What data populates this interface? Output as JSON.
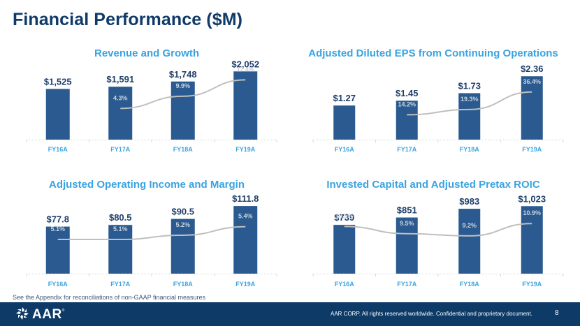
{
  "page": {
    "title": "Financial Performance ($M)",
    "footnote": "See the Appendix for reconciliations of non-GAAP financial measures",
    "footer": {
      "logo_text": "AAR",
      "logo_mark": "®",
      "copyright": "AAR CORP. All rights reserved worldwide. Confidential and proprietary document.",
      "page_number": "8"
    }
  },
  "colors": {
    "title": "#0f3a68",
    "chart_title": "#3aa3e0",
    "bar": "#2a5a8f",
    "bar_label": "#1f3f6b",
    "line": "#bfbfbf",
    "line_label": "#c9d3df",
    "axis_label": "#3aa3e0",
    "footer_bg": "#0d3a66"
  },
  "chart_data": [
    {
      "type": "bar",
      "title": "Revenue and Growth",
      "categories": [
        "FY16A",
        "FY17A",
        "FY18A",
        "FY19A"
      ],
      "series": [
        {
          "name": "Revenue",
          "kind": "bar",
          "values": [
            1525,
            1591,
            1748,
            2052
          ],
          "labels": [
            "$1,525",
            "$1,591",
            "$1,748",
            "$2,052"
          ]
        },
        {
          "name": "Growth",
          "kind": "line",
          "values": [
            null,
            4.3,
            9.9,
            17.4
          ],
          "labels": [
            "",
            "4.3%",
            "9.9%",
            "17.4%"
          ]
        }
      ],
      "xlabel": "",
      "ylabel": "",
      "bar_ylim": [
        0,
        2100
      ],
      "line_ylim": [
        -10,
        22
      ],
      "grid": false,
      "legend": "none"
    },
    {
      "type": "bar",
      "title": "Adjusted Diluted EPS from Continuing Operations",
      "categories": [
        "FY16A",
        "FY17A",
        "FY18A",
        "FY19A"
      ],
      "series": [
        {
          "name": "Adjusted Diluted EPS",
          "kind": "bar",
          "values": [
            1.27,
            1.45,
            1.73,
            2.36
          ],
          "labels": [
            "$1.27",
            "$1.45",
            "$1.73",
            "$2.36"
          ]
        },
        {
          "name": "Growth",
          "kind": "line",
          "values": [
            null,
            14.2,
            19.3,
            36.4
          ],
          "labels": [
            "",
            "14.2%",
            "19.3%",
            "36.4%"
          ]
        }
      ],
      "xlabel": "",
      "ylabel": "",
      "bar_ylim": [
        0,
        2.6
      ],
      "line_ylim": [
        -10,
        58
      ],
      "grid": false,
      "legend": "none"
    },
    {
      "type": "bar",
      "title": "Adjusted Operating Income and Margin",
      "categories": [
        "FY16A",
        "FY17A",
        "FY18A",
        "FY19A"
      ],
      "series": [
        {
          "name": "Adjusted Operating Income",
          "kind": "bar",
          "values": [
            77.8,
            80.5,
            90.5,
            111.8
          ],
          "labels": [
            "$77.8",
            "$80.5",
            "$90.5",
            "$111.8"
          ]
        },
        {
          "name": "Margin",
          "kind": "line",
          "values": [
            5.1,
            5.1,
            5.2,
            5.4
          ],
          "labels": [
            "5.1%",
            "5.1%",
            "5.2%",
            "5.4%"
          ]
        }
      ],
      "xlabel": "",
      "ylabel": "",
      "bar_ylim": [
        0,
        120
      ],
      "line_ylim": [
        4.3,
        6.0
      ],
      "grid": false,
      "legend": "none"
    },
    {
      "type": "bar",
      "title": "Invested Capital and Adjusted Pretax ROIC",
      "categories": [
        "FY16A",
        "FY17A",
        "FY18A",
        "FY19A"
      ],
      "series": [
        {
          "name": "Invested Capital",
          "kind": "bar",
          "values": [
            739,
            851,
            983,
            1023
          ],
          "labels": [
            "$739",
            "$851",
            "$983",
            "$1,023"
          ]
        },
        {
          "name": "Adjusted Pretax ROIC",
          "kind": "line",
          "values": [
            10.5,
            9.5,
            9.2,
            10.9
          ],
          "labels": [
            "10.5%",
            "9.5%",
            "9.2%",
            "10.9%"
          ]
        }
      ],
      "xlabel": "",
      "ylabel": "",
      "bar_ylim": [
        0,
        1100
      ],
      "line_ylim": [
        4,
        14
      ],
      "grid": false,
      "legend": "none"
    }
  ]
}
